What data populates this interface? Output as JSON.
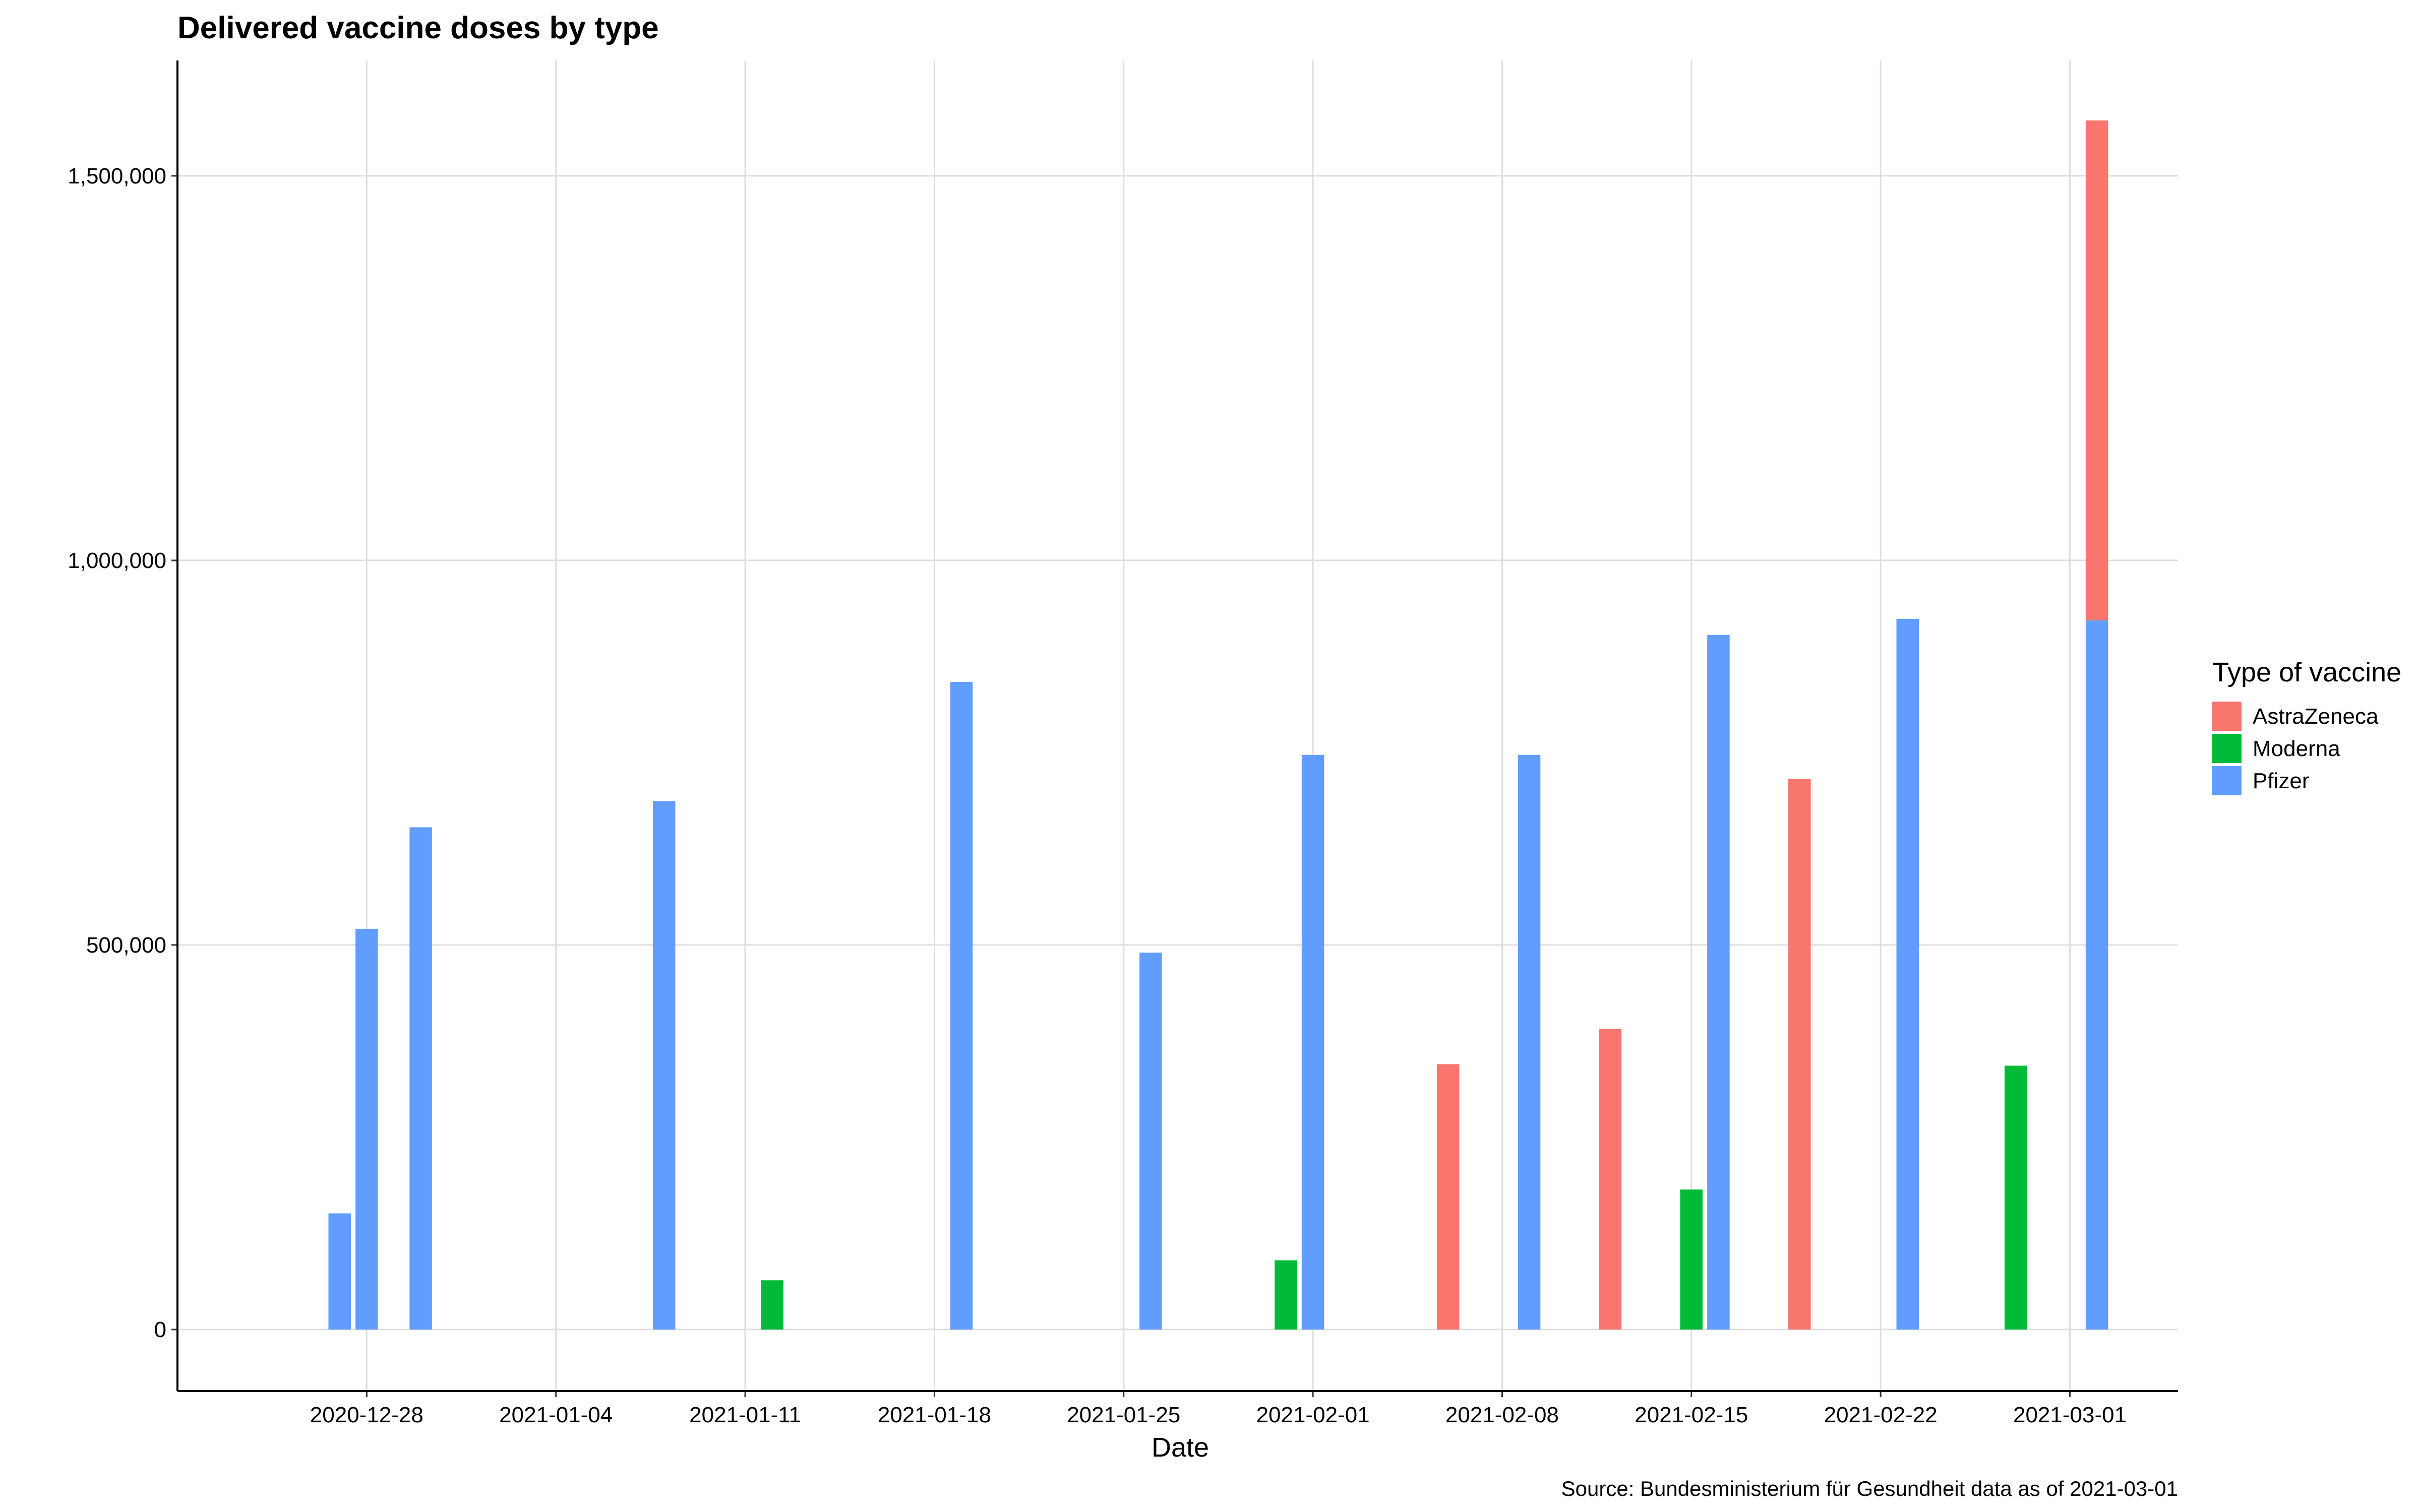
{
  "chart_data": {
    "type": "bar",
    "stacked": true,
    "title": "Delivered vaccine doses by type",
    "xlabel": "Date",
    "ylabel": "",
    "caption": "Source: Bundesministerium für Gesundheit data as of 2021-03-01",
    "x_range": [
      "2020-12-21",
      "2021-03-05"
    ],
    "ylim": [
      -80000,
      1650000
    ],
    "x_ticks": [
      "2020-12-28",
      "2021-01-04",
      "2021-01-11",
      "2021-01-18",
      "2021-01-25",
      "2021-02-01",
      "2021-02-08",
      "2021-02-15",
      "2021-02-22",
      "2021-03-01"
    ],
    "y_ticks": [
      {
        "value": 0,
        "label": "0"
      },
      {
        "value": 500000,
        "label": "500,000"
      },
      {
        "value": 1000000,
        "label": "1,000,000"
      },
      {
        "value": 1500000,
        "label": "1,500,000"
      }
    ],
    "grid": true,
    "legend": {
      "title": "Type of vaccine",
      "position": "right"
    },
    "series": [
      {
        "name": "AstraZeneca",
        "color": "#F8766D",
        "points": [
          {
            "date": "2021-02-06",
            "value": 345000
          },
          {
            "date": "2021-02-12",
            "value": 391000
          },
          {
            "date": "2021-02-19",
            "value": 716000
          },
          {
            "date": "2021-03-02",
            "value": 650000
          }
        ]
      },
      {
        "name": "Moderna",
        "color": "#00BA38",
        "points": [
          {
            "date": "2021-01-12",
            "value": 64000
          },
          {
            "date": "2021-01-31",
            "value": 90000
          },
          {
            "date": "2021-02-15",
            "value": 182000
          },
          {
            "date": "2021-02-27",
            "value": 343000
          }
        ]
      },
      {
        "name": "Pfizer",
        "color": "#619CFF",
        "points": [
          {
            "date": "2020-12-27",
            "value": 151000
          },
          {
            "date": "2020-12-28",
            "value": 521000
          },
          {
            "date": "2020-12-30",
            "value": 653000
          },
          {
            "date": "2021-01-08",
            "value": 687000
          },
          {
            "date": "2021-01-19",
            "value": 842000
          },
          {
            "date": "2021-01-26",
            "value": 490000
          },
          {
            "date": "2021-02-01",
            "value": 747000
          },
          {
            "date": "2021-02-09",
            "value": 747000
          },
          {
            "date": "2021-02-16",
            "value": 903000
          },
          {
            "date": "2021-02-23",
            "value": 924000
          },
          {
            "date": "2021-03-02",
            "value": 922000
          }
        ]
      }
    ]
  }
}
